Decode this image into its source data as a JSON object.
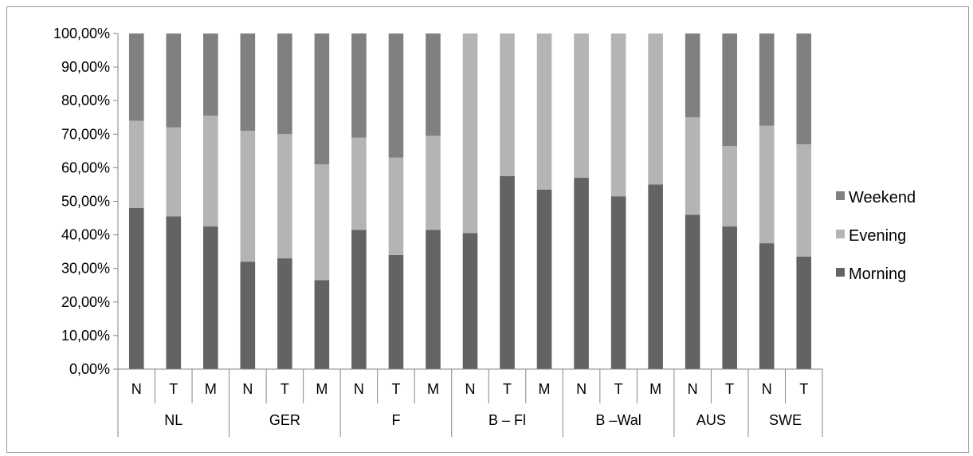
{
  "chart_data": {
    "type": "bar",
    "stacked": true,
    "normalized": true,
    "y_tick_labels": [
      "0,00%",
      "10,00%",
      "20,00%",
      "30,00%",
      "40,00%",
      "50,00%",
      "60,00%",
      "70,00%",
      "80,00%",
      "90,00%",
      "100,00%"
    ],
    "ylim": [
      0,
      100
    ],
    "groups": [
      {
        "label": "NL",
        "categories": [
          "N",
          "T",
          "M"
        ]
      },
      {
        "label": "GER",
        "categories": [
          "N",
          "T",
          "M"
        ]
      },
      {
        "label": "F",
        "categories": [
          "N",
          "T",
          "M"
        ]
      },
      {
        "label": "B – Fl",
        "categories": [
          "N",
          "T",
          "M"
        ]
      },
      {
        "label": "B –Wal",
        "categories": [
          "N",
          "T",
          "M"
        ]
      },
      {
        "label": "AUS",
        "categories": [
          "N",
          "T"
        ]
      },
      {
        "label": "SWE",
        "categories": [
          "N",
          "T"
        ]
      }
    ],
    "series": [
      {
        "name": "Morning",
        "color": "#636363",
        "values": [
          48,
          45.5,
          42.5,
          32,
          33,
          26.5,
          41.5,
          34,
          41.5,
          40.5,
          57.5,
          53.5,
          57,
          51.5,
          55,
          46,
          42.5,
          37.5,
          33.5
        ]
      },
      {
        "name": "Evening",
        "color": "#b4b4b4",
        "values": [
          26,
          26.5,
          33,
          39,
          37,
          34.5,
          27.5,
          29,
          28,
          59.5,
          42.5,
          46.5,
          43,
          48.5,
          45,
          29,
          24,
          35,
          33.5
        ]
      },
      {
        "name": "Weekend",
        "color": "#808080",
        "values": [
          26,
          28,
          24.5,
          29,
          30,
          39,
          31,
          37,
          30.5,
          0,
          0,
          0,
          0,
          0,
          0,
          25,
          33.5,
          27.5,
          33
        ]
      }
    ],
    "legend_position": "right",
    "legend_order": [
      "Weekend",
      "Evening",
      "Morning"
    ],
    "gridlines": false
  }
}
